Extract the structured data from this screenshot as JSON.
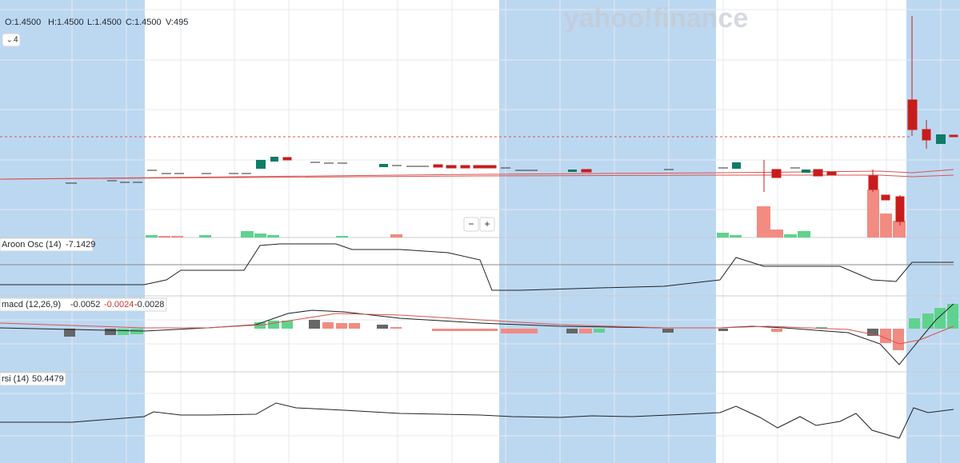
{
  "ohlc": {
    "open": "O:1.4500",
    "high": "H:1.4500",
    "low": "L:1.4500",
    "close": "C:1.4500",
    "volume": "V:495"
  },
  "collapse_button": "4",
  "watermark": "yahoo!finance",
  "zoom": {
    "out": "−",
    "in": "+"
  },
  "indicators": [
    {
      "label": "Aroon Osc (14)",
      "values": [
        "-7.1429"
      ]
    },
    {
      "label": "macd (12,26,9)",
      "values": [
        "-0.0052",
        "-0.0024",
        "-0.0028"
      ]
    },
    {
      "label": "rsi (14)",
      "values": [
        "50.4479"
      ]
    }
  ]
}
